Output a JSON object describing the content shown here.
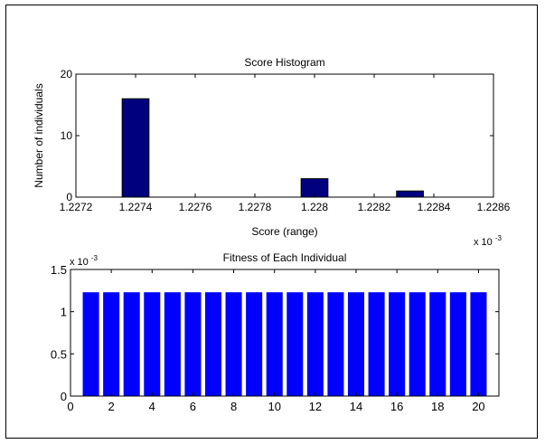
{
  "chart_data": [
    {
      "type": "bar",
      "title": "Score Histogram",
      "xlabel": "Score (range)",
      "ylabel": "Number of individuals",
      "x_exponent_label": "x 10",
      "x_exponent_power": "-3",
      "xlim": [
        1.2272,
        1.2286
      ],
      "ylim": [
        0,
        20
      ],
      "xticks": [
        "1.2272",
        "1.2274",
        "1.2276",
        "1.2278",
        "1.228",
        "1.2282",
        "1.2284",
        "1.2286"
      ],
      "yticks": [
        "0",
        "10",
        "20"
      ],
      "x": [
        1.2274,
        1.228,
        1.22832
      ],
      "values": [
        16,
        3,
        1
      ],
      "bar_color": "#00007f"
    },
    {
      "type": "bar",
      "title": "Fitness of Each Individual",
      "xlabel": "",
      "ylabel": "",
      "y_exponent_label": "x 10",
      "y_exponent_power": "-3",
      "xlim": [
        0,
        21
      ],
      "ylim": [
        0,
        1.5
      ],
      "xticks": [
        "0",
        "2",
        "4",
        "6",
        "8",
        "10",
        "12",
        "14",
        "16",
        "18",
        "20"
      ],
      "yticks": [
        "0",
        "0.5",
        "1",
        "1.5"
      ],
      "categories": [
        1,
        2,
        3,
        4,
        5,
        6,
        7,
        8,
        9,
        10,
        11,
        12,
        13,
        14,
        15,
        16,
        17,
        18,
        19,
        20
      ],
      "values": [
        1.23,
        1.23,
        1.23,
        1.23,
        1.23,
        1.23,
        1.23,
        1.23,
        1.23,
        1.23,
        1.23,
        1.23,
        1.23,
        1.23,
        1.23,
        1.23,
        1.23,
        1.23,
        1.23,
        1.23
      ],
      "bar_color": "#0000ff"
    }
  ]
}
